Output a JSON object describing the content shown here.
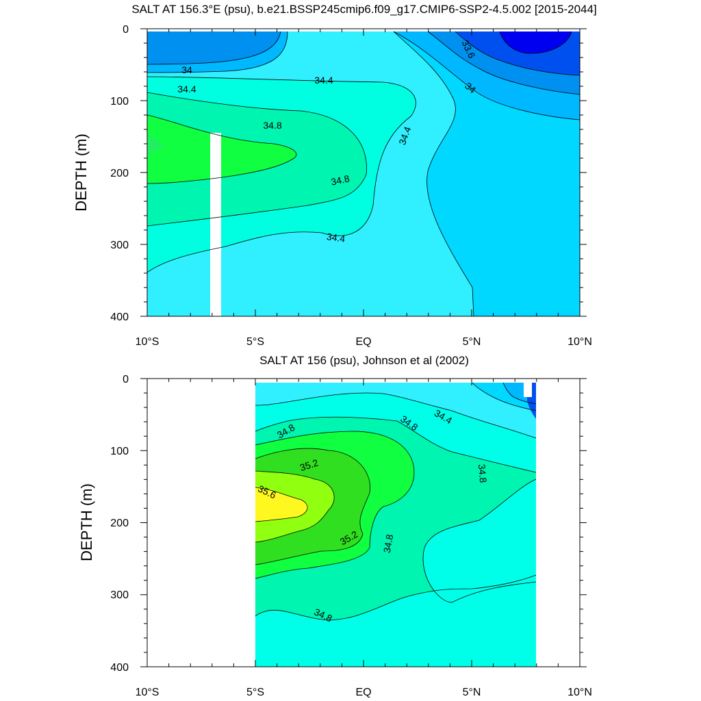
{
  "chart_data": [
    {
      "type": "heatmap",
      "title": "SALT AT 156.3°E (psu), b.e21.BSSP245cmip6.f09_g17.CMIP6-SSP2-4.5.002 [2015-2044]",
      "ylabel": "DEPTH (m)",
      "xlabel": "",
      "xlim": [
        -10,
        10
      ],
      "ylim": [
        400,
        0
      ],
      "x_ticks": [
        "10°S",
        "5°S",
        "EQ",
        "5°N",
        "10°N"
      ],
      "y_ticks": [
        "0",
        "100",
        "200",
        "300",
        "400"
      ],
      "contour_labels": [
        "34",
        "34.4",
        "34.4",
        "34.8",
        "34.8",
        "34.4",
        "34.4",
        "33.6",
        "34"
      ],
      "salinity_range": [
        33.4,
        35.0
      ],
      "palette": {
        "33.4": "#0000f0",
        "33.6": "#0050f0",
        "33.8": "#0090f0",
        "34.0": "#00b8ff",
        "34.2": "#00d8ff",
        "34.4": "#30f0ff",
        "34.6": "#00ffe0",
        "34.8": "#00f5b0",
        "35.0": "#10ff40"
      }
    },
    {
      "type": "heatmap",
      "title": "SALT AT 156 (psu), Johnson et al (2002)",
      "ylabel": "DEPTH (m)",
      "xlabel": "",
      "xlim": [
        -10,
        10
      ],
      "ylim": [
        400,
        0
      ],
      "data_xrange": [
        -5,
        8
      ],
      "x_ticks": [
        "10°S",
        "5°S",
        "EQ",
        "5°N",
        "10°N"
      ],
      "y_ticks": [
        "0",
        "100",
        "200",
        "300",
        "400"
      ],
      "contour_labels": [
        "34.8",
        "34.8",
        "34.4",
        "35.2",
        "35.6",
        "35.2",
        "34.8",
        "34.8",
        "34.8"
      ],
      "salinity_range": [
        34.0,
        35.8
      ],
      "palette": {
        "34.0": "#00b8ff",
        "34.4": "#30f0ff",
        "34.6": "#00ffe8",
        "34.8": "#00f5b0",
        "35.0": "#10ff40",
        "35.2": "#30e020",
        "35.4": "#90ff10",
        "35.6": "#fff820"
      }
    }
  ]
}
